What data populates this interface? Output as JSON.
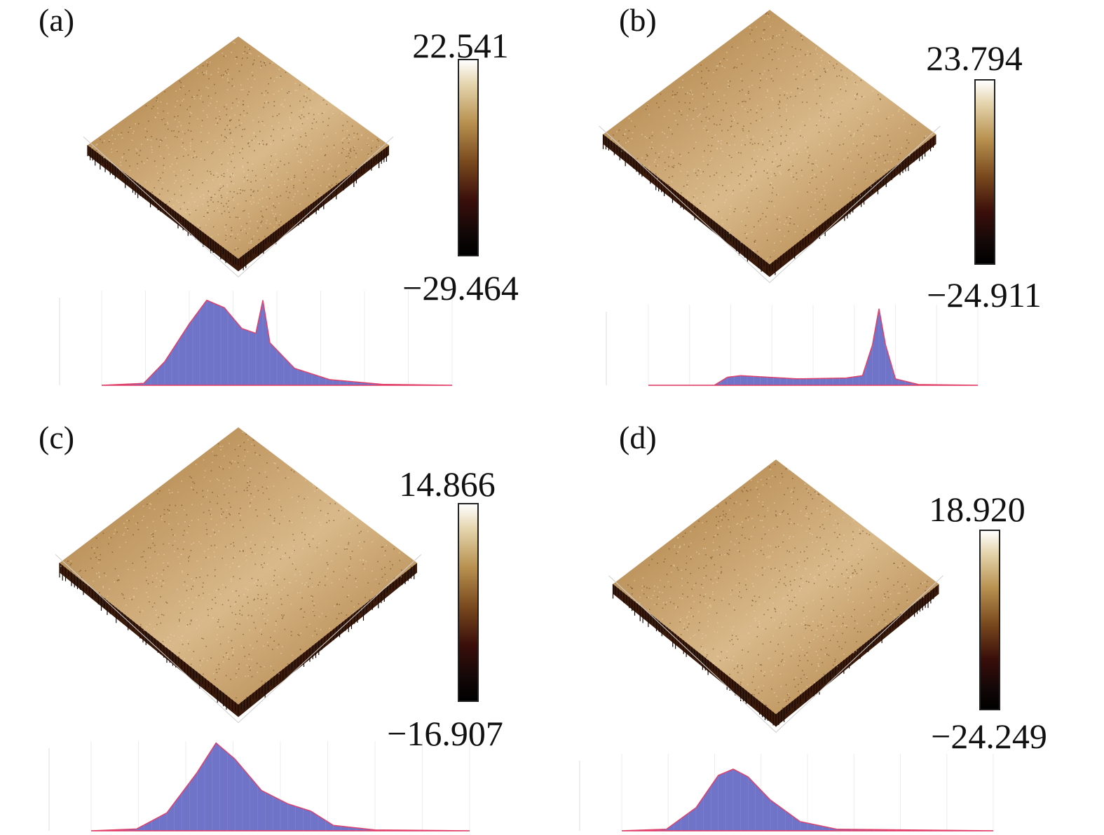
{
  "panels": [
    {
      "label": "(a)",
      "colorbar": {
        "max": "22.541",
        "min": "−29.464"
      }
    },
    {
      "label": "(b)",
      "colorbar": {
        "max": "23.794",
        "min": "−24.911"
      }
    },
    {
      "label": "(c)",
      "colorbar": {
        "max": "14.866",
        "min": "−16.907"
      }
    },
    {
      "label": "(d)",
      "colorbar": {
        "max": "18.920",
        "min": "−24.249"
      }
    }
  ],
  "colors": {
    "surface_light": "#d9b98a",
    "surface_mid": "#a8783c",
    "surface_dark": "#3a1a0a",
    "histogram_fill": "#6f74c9",
    "histogram_edge": "#e0406a"
  },
  "chart_data": [
    {
      "type": "area",
      "panel": "(a)",
      "description_points": [
        [
          0,
          0
        ],
        [
          0.12,
          0.02
        ],
        [
          0.18,
          0.25
        ],
        [
          0.25,
          0.65
        ],
        [
          0.3,
          0.9
        ],
        [
          0.35,
          0.82
        ],
        [
          0.4,
          0.6
        ],
        [
          0.44,
          0.55
        ],
        [
          0.46,
          0.9
        ],
        [
          0.48,
          0.45
        ],
        [
          0.55,
          0.18
        ],
        [
          0.65,
          0.06
        ],
        [
          0.8,
          0.01
        ],
        [
          1,
          0
        ]
      ]
    },
    {
      "type": "area",
      "panel": "(b)",
      "description_points": [
        [
          0,
          0
        ],
        [
          0.2,
          0.0
        ],
        [
          0.24,
          0.1
        ],
        [
          0.28,
          0.12
        ],
        [
          0.45,
          0.08
        ],
        [
          0.6,
          0.09
        ],
        [
          0.65,
          0.12
        ],
        [
          0.68,
          0.5
        ],
        [
          0.7,
          0.95
        ],
        [
          0.72,
          0.5
        ],
        [
          0.75,
          0.08
        ],
        [
          0.82,
          0.01
        ],
        [
          1,
          0
        ]
      ]
    },
    {
      "type": "area",
      "panel": "(c)",
      "description_points": [
        [
          0,
          0
        ],
        [
          0.12,
          0.02
        ],
        [
          0.2,
          0.2
        ],
        [
          0.28,
          0.65
        ],
        [
          0.33,
          0.98
        ],
        [
          0.38,
          0.8
        ],
        [
          0.45,
          0.45
        ],
        [
          0.52,
          0.3
        ],
        [
          0.58,
          0.22
        ],
        [
          0.64,
          0.06
        ],
        [
          0.75,
          0.01
        ],
        [
          1,
          0
        ]
      ]
    },
    {
      "type": "area",
      "panel": "(d)",
      "description_points": [
        [
          0,
          0
        ],
        [
          0.12,
          0.02
        ],
        [
          0.2,
          0.3
        ],
        [
          0.26,
          0.72
        ],
        [
          0.3,
          0.8
        ],
        [
          0.34,
          0.7
        ],
        [
          0.4,
          0.4
        ],
        [
          0.48,
          0.12
        ],
        [
          0.58,
          0.02
        ],
        [
          1,
          0
        ]
      ]
    }
  ]
}
